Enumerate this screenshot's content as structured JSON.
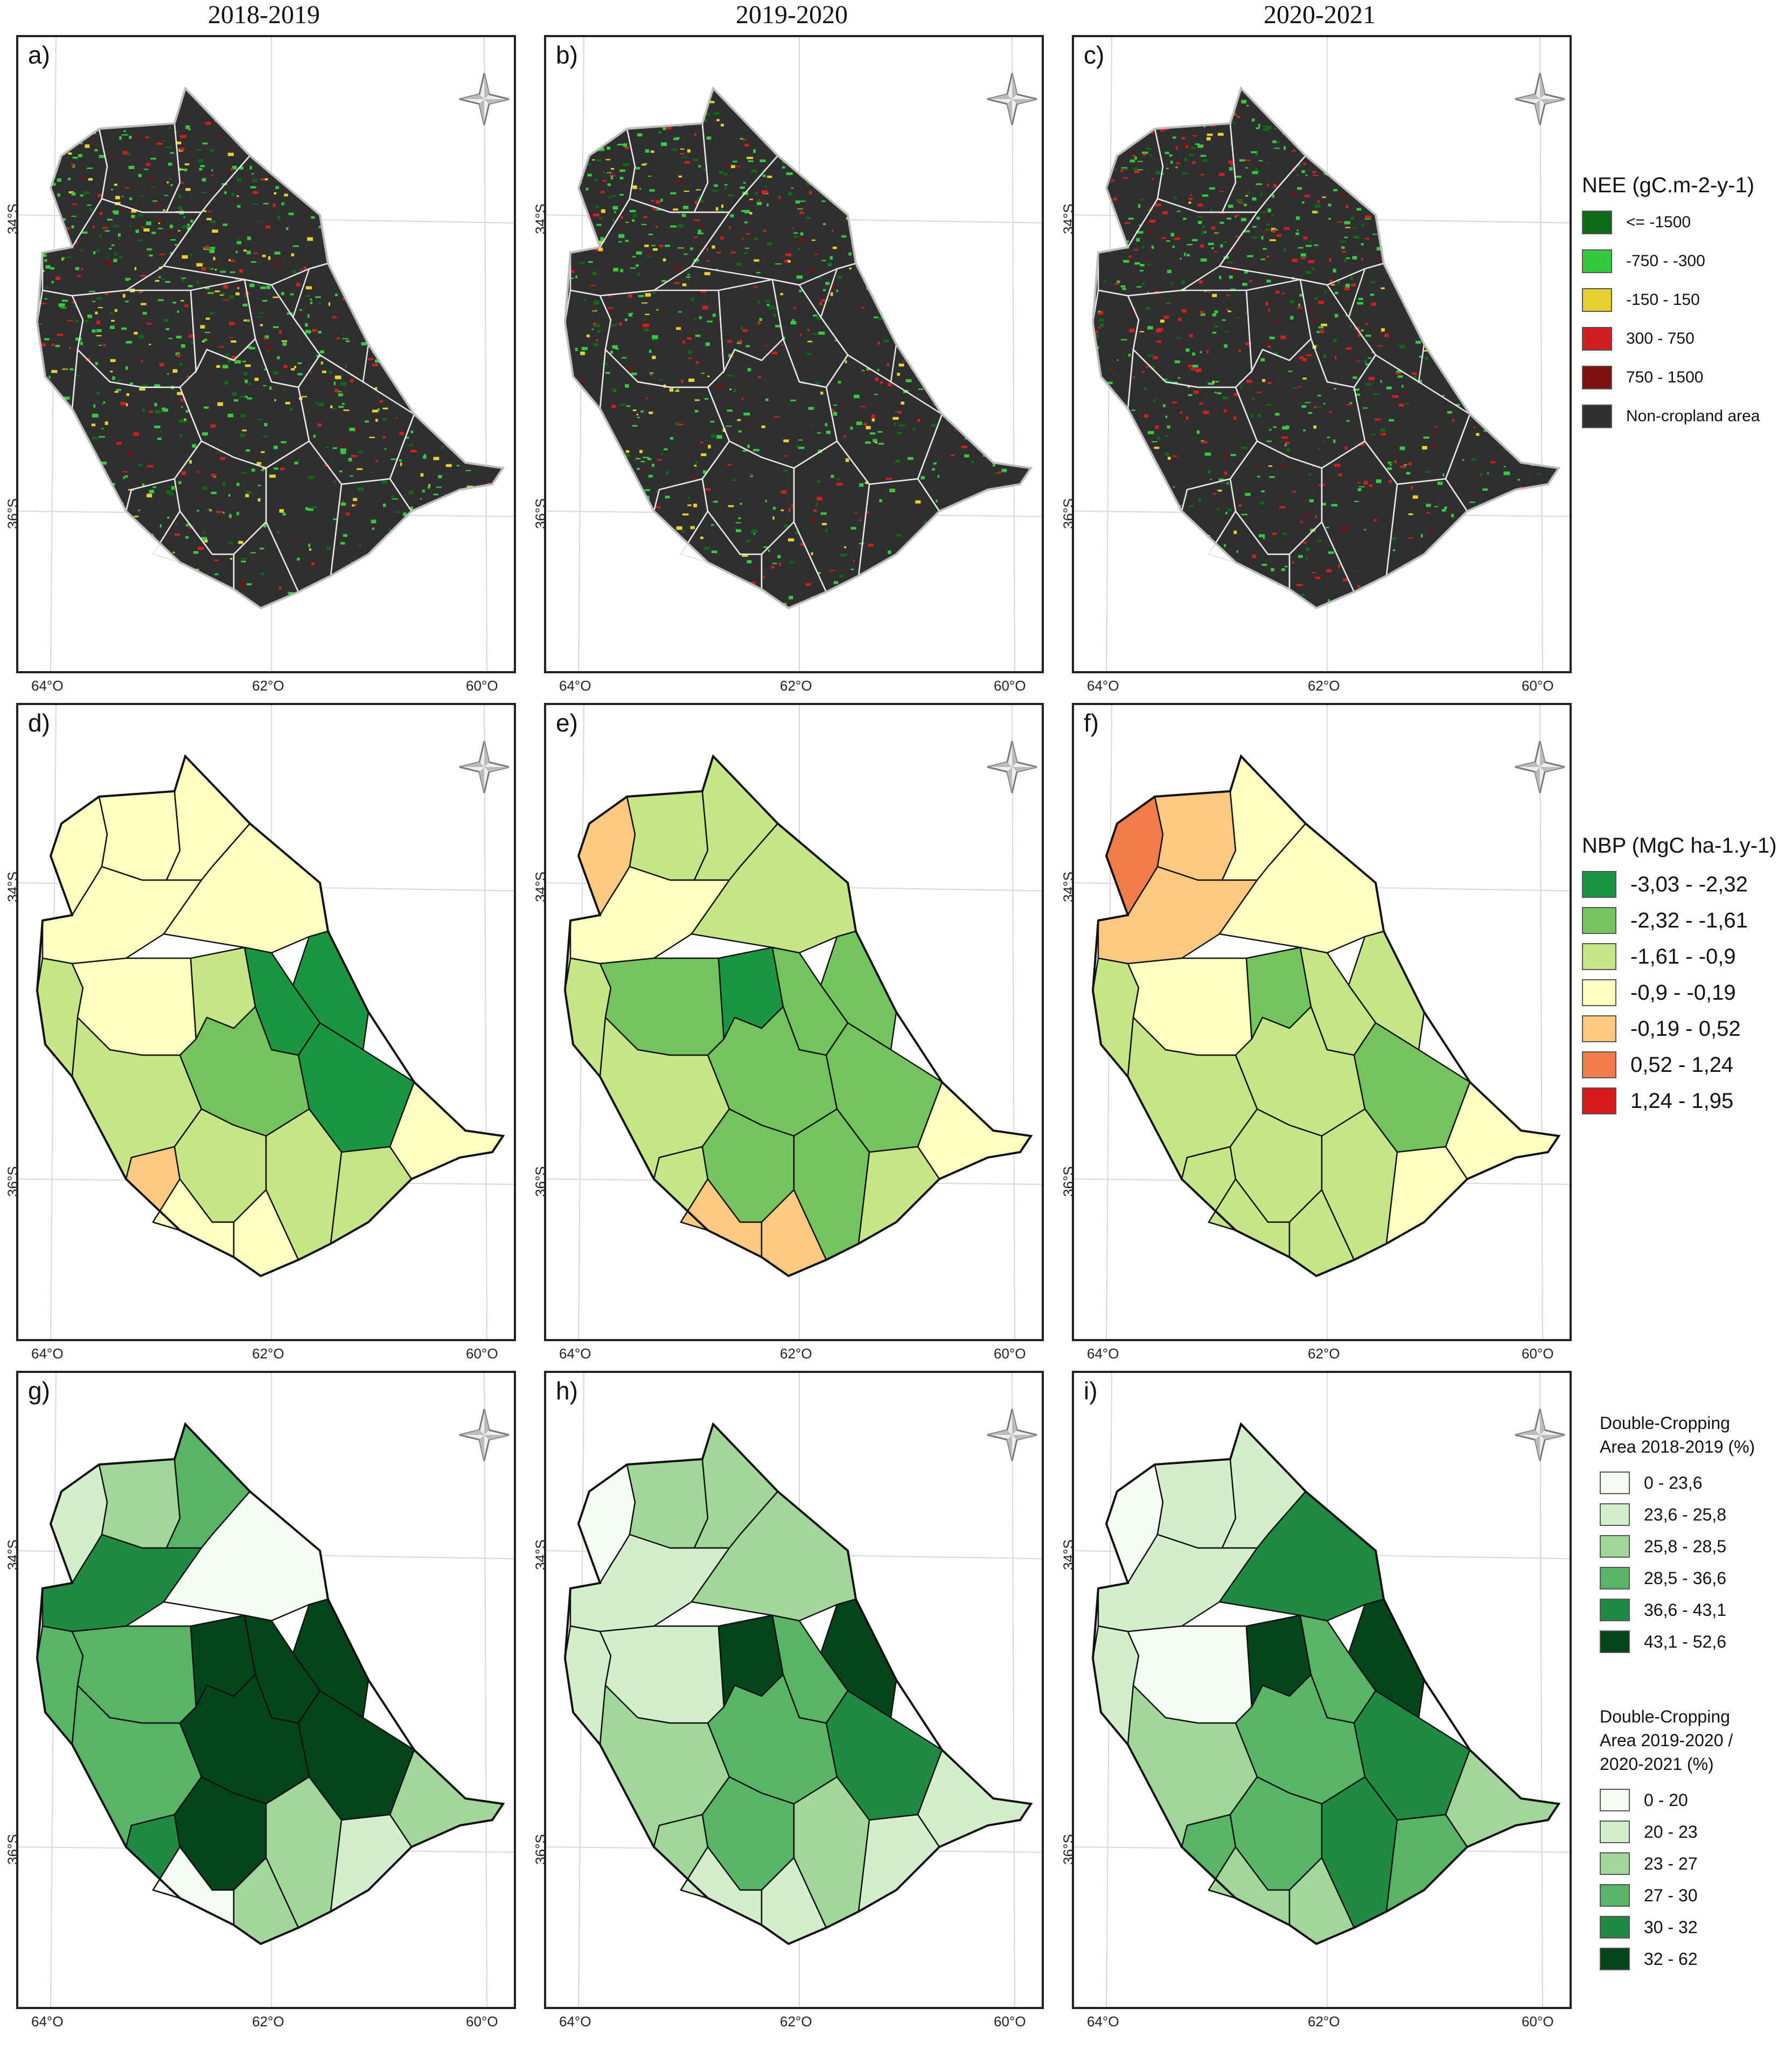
{
  "column_titles": [
    "2018-2019",
    "2019-2020",
    "2020-2021"
  ],
  "axis_labels": {
    "lon": [
      "64°O",
      "62°O",
      "60°O"
    ],
    "lat": [
      "34°S",
      "36°S"
    ]
  },
  "panels": [
    {
      "letter": "a)",
      "variable": "NEE",
      "choropleth": false
    },
    {
      "letter": "b)",
      "variable": "NEE",
      "choropleth": false
    },
    {
      "letter": "c)",
      "variable": "NEE",
      "choropleth": false
    },
    {
      "letter": "d)",
      "variable": "NBP",
      "choropleth": true,
      "district_classes": [
        3,
        3,
        3,
        3,
        3,
        2,
        3,
        2,
        0,
        1,
        0,
        0,
        2,
        3,
        4,
        2,
        3,
        3,
        2,
        2
      ]
    },
    {
      "letter": "e)",
      "variable": "NBP",
      "choropleth": true,
      "district_classes": [
        4,
        2,
        2,
        3,
        2,
        2,
        1,
        0,
        1,
        1,
        1,
        1,
        2,
        3,
        2,
        1,
        4,
        4,
        1,
        2
      ]
    },
    {
      "letter": "f)",
      "variable": "NBP",
      "choropleth": true,
      "district_classes": [
        5,
        4,
        3,
        4,
        3,
        2,
        3,
        1,
        2,
        2,
        2,
        1,
        2,
        3,
        2,
        2,
        2,
        2,
        2,
        3
      ]
    },
    {
      "letter": "g)",
      "variable": "DC2018",
      "choropleth": true,
      "district_classes": [
        1,
        2,
        3,
        4,
        0,
        3,
        3,
        5,
        5,
        5,
        5,
        5,
        3,
        2,
        4,
        5,
        0,
        2,
        2,
        1
      ]
    },
    {
      "letter": "h)",
      "variable": "DC19_21",
      "choropleth": true,
      "district_classes": [
        0,
        2,
        2,
        1,
        2,
        1,
        1,
        5,
        3,
        3,
        5,
        4,
        2,
        1,
        2,
        3,
        1,
        1,
        2,
        1
      ]
    },
    {
      "letter": "i)",
      "variable": "DC19_21",
      "choropleth": true,
      "district_classes": [
        0,
        1,
        1,
        1,
        4,
        1,
        0,
        5,
        3,
        3,
        5,
        4,
        2,
        2,
        3,
        3,
        2,
        2,
        4,
        3
      ]
    }
  ],
  "legends": {
    "nee": {
      "title": "NEE (gC.m-2-y-1)",
      "items": [
        {
          "label": "<= -1500",
          "color": "#0c6b14"
        },
        {
          "label": "-750 - -300",
          "color": "#34c93f"
        },
        {
          "label": "-150 - 150",
          "color": "#e6d12e"
        },
        {
          "label": "300 - 750",
          "color": "#d11f1f"
        },
        {
          "label": "750 - 1500",
          "color": "#7f1010"
        },
        {
          "label": "Non-cropland area",
          "color": "#2f2f2f"
        }
      ]
    },
    "nbp": {
      "title": "NBP (MgC ha-1.y-1)",
      "items": [
        {
          "label": "-3,03 - -2,32",
          "color": "#1a9641"
        },
        {
          "label": "-2,32 - -1,61",
          "color": "#74c45e"
        },
        {
          "label": "-1,61 - -0,9",
          "color": "#c4e687"
        },
        {
          "label": "-0,9 - -0,19",
          "color": "#ffffc0"
        },
        {
          "label": "-0,19 - 0,52",
          "color": "#fdc980"
        },
        {
          "label": "0,52 - 1,24",
          "color": "#f07c4a"
        },
        {
          "label": "1,24 - 1,95",
          "color": "#d7191c"
        }
      ]
    },
    "dc2018": {
      "title_line1": "Double-Cropping",
      "title_line2": "Area 2018-2019 (%)",
      "items": [
        {
          "label": "0 - 23,6",
          "color": "#f6fbf3"
        },
        {
          "label": "23,6 - 25,8",
          "color": "#d3eecd"
        },
        {
          "label": "25,8 - 28,5",
          "color": "#a1d89a"
        },
        {
          "label": "28,5 - 36,6",
          "color": "#58b567"
        },
        {
          "label": "36,6 - 43,1",
          "color": "#1e8a42"
        },
        {
          "label": "43,1 - 52,6",
          "color": "#03441b"
        }
      ]
    },
    "dc1921": {
      "title_line1": "Double-Cropping",
      "title_line2": "Area 2019-2020 /",
      "title_line3": "2020-2021 (%)",
      "items": [
        {
          "label": "0 - 20",
          "color": "#f6fbf3"
        },
        {
          "label": "20 - 23",
          "color": "#d3eecd"
        },
        {
          "label": "23 - 27",
          "color": "#a1d89a"
        },
        {
          "label": "27 - 30",
          "color": "#58b567"
        },
        {
          "label": "30 - 32",
          "color": "#1e8a42"
        },
        {
          "label": "32 - 62",
          "color": "#03441b"
        }
      ]
    }
  }
}
